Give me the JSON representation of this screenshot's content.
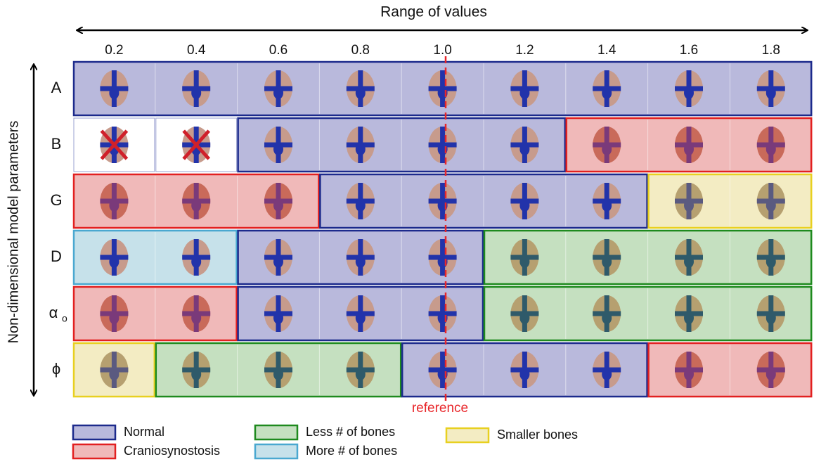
{
  "header": {
    "title": "Range of values",
    "axis_label": "Non-dimensional model parameters"
  },
  "columns": [
    "0.2",
    "0.4",
    "0.6",
    "0.8",
    "1.0",
    "1.2",
    "1.4",
    "1.6",
    "1.8"
  ],
  "rows": [
    {
      "label": "A"
    },
    {
      "label": "B"
    },
    {
      "label": "G"
    },
    {
      "label": "D"
    },
    {
      "label": "α",
      "subscript": "o"
    },
    {
      "label": "ϕ"
    }
  ],
  "reference": "reference",
  "legend": [
    "Normal",
    "Craniosynostosis",
    "Less # of bones",
    "More # of bones",
    "Smaller bones"
  ]
}
